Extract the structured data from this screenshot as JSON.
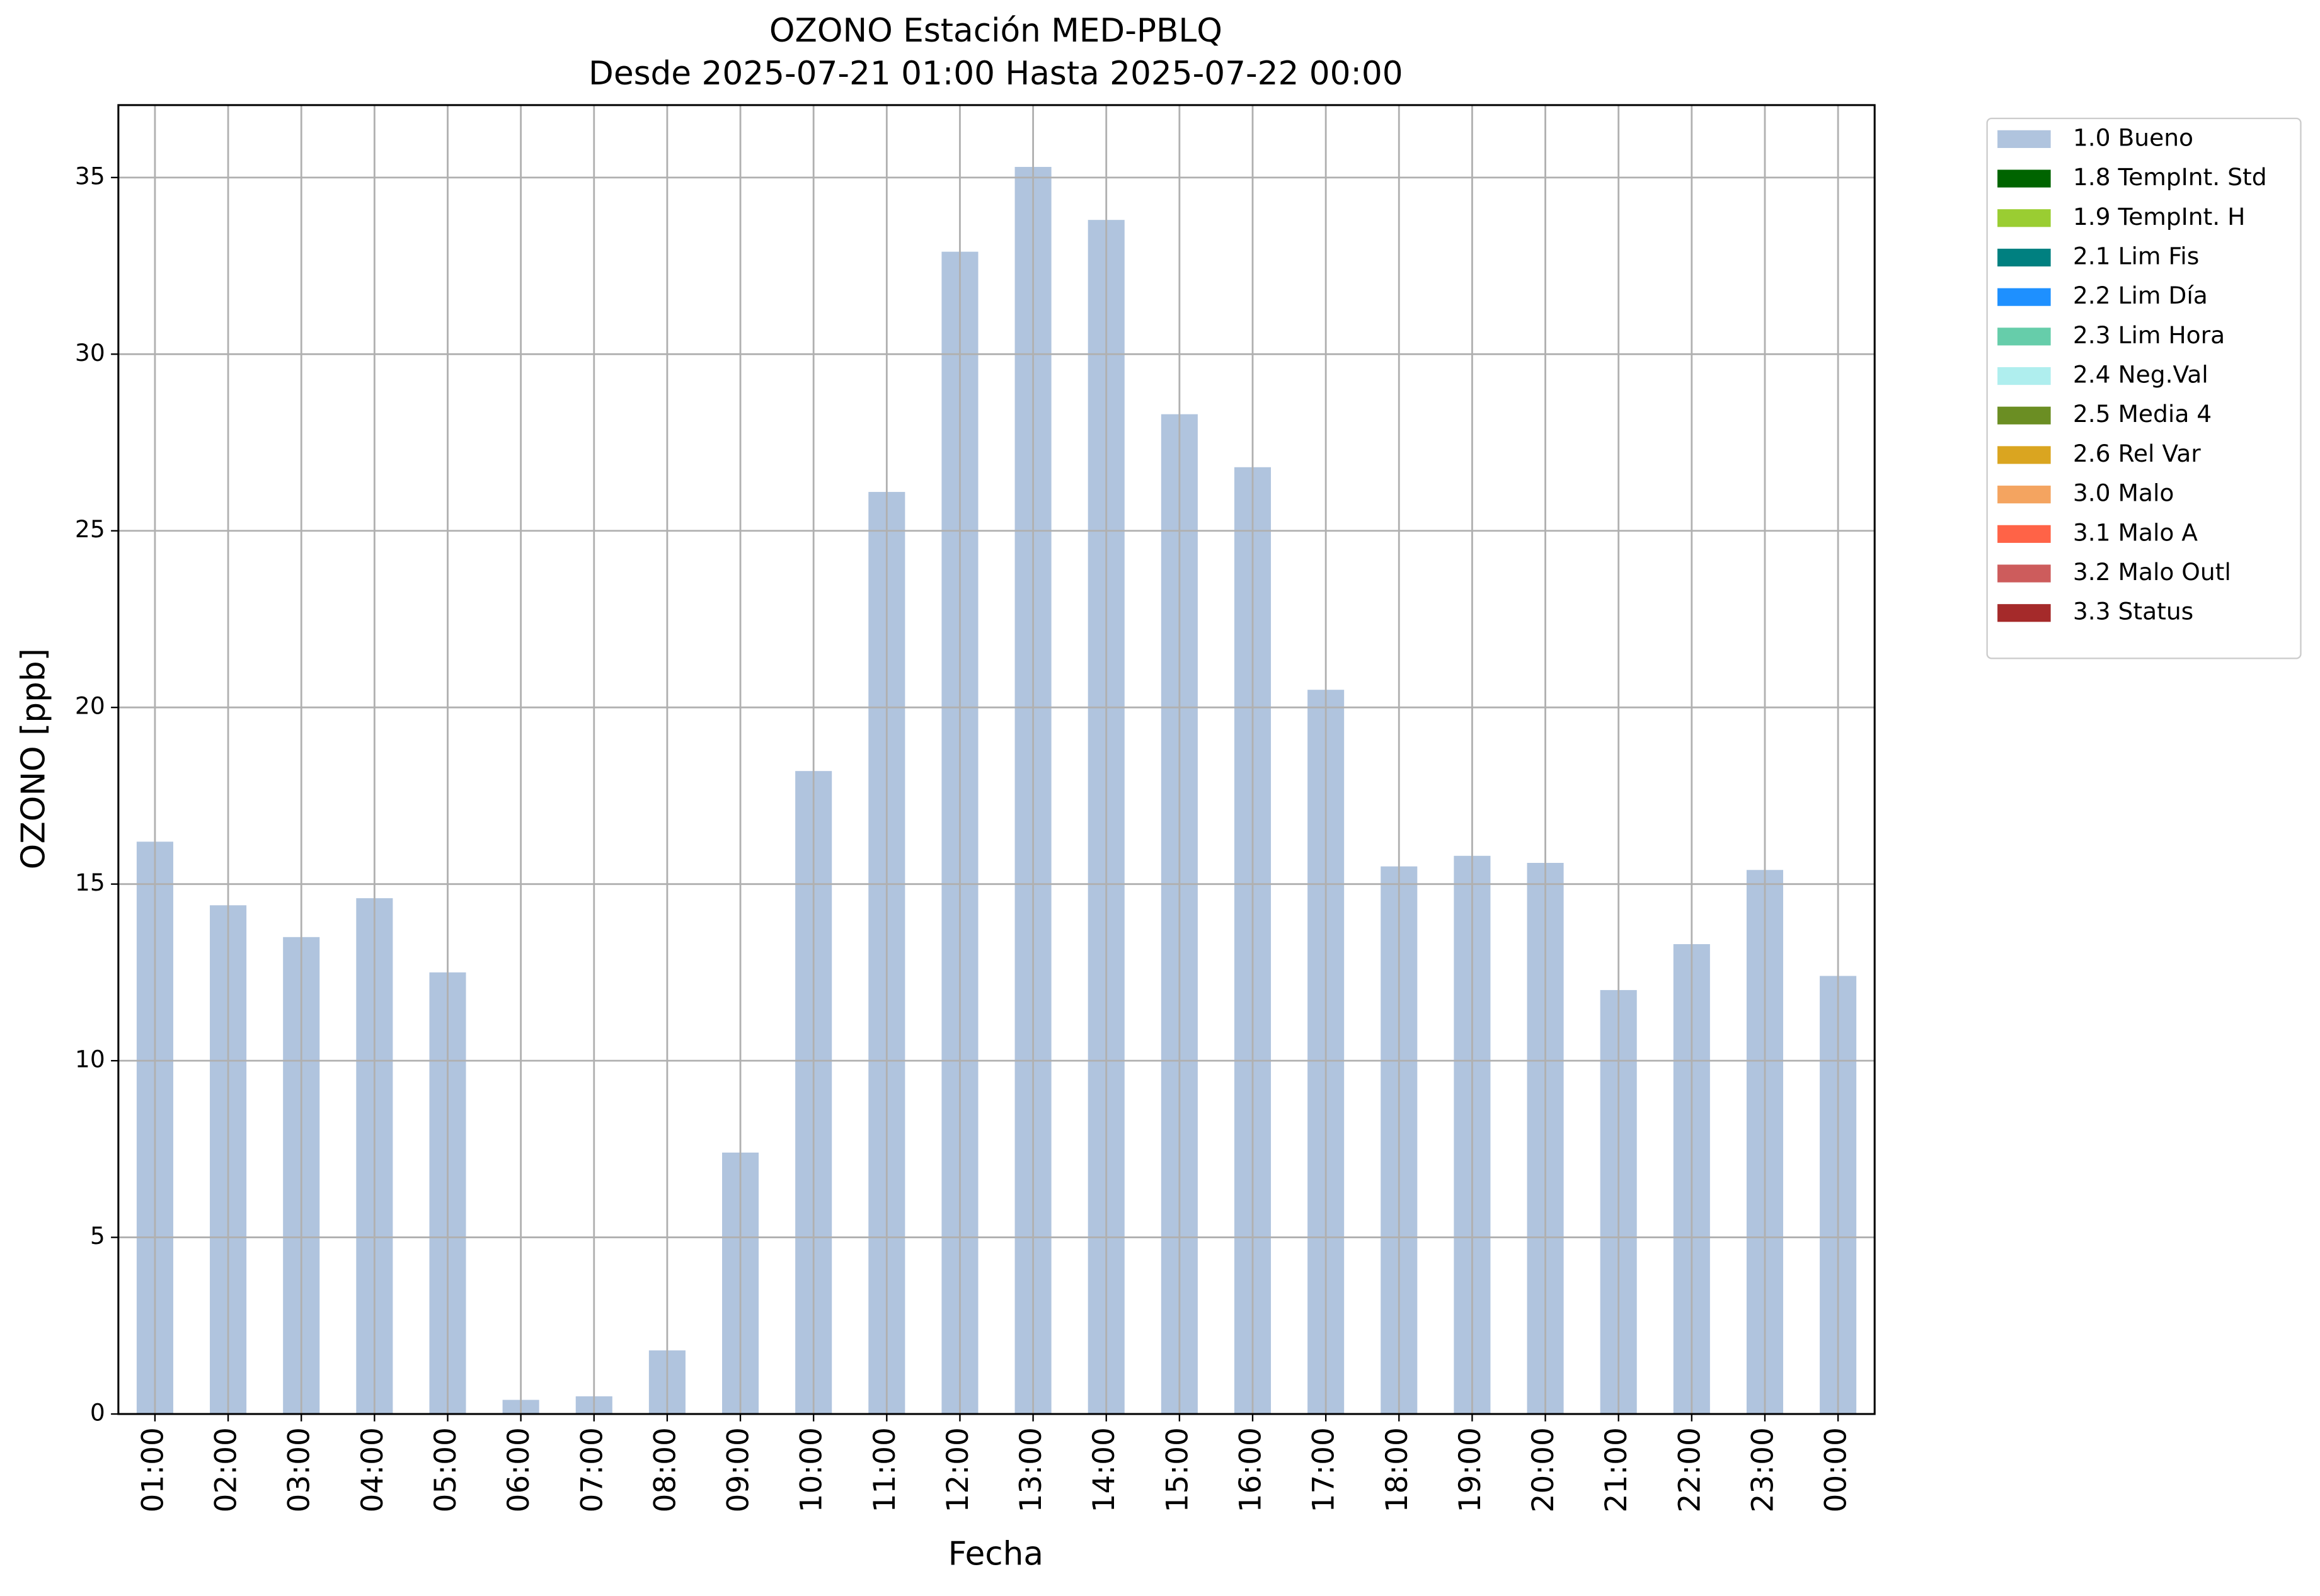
{
  "chart_data": {
    "type": "bar",
    "title": "OZONO Estación MED-PBLQ",
    "subtitle": "Desde 2025-07-21 01:00 Hasta 2025-07-22 00:00",
    "x_label": "Fecha",
    "y_label": "OZONO [ppb]",
    "categories": [
      "01:00",
      "02:00",
      "03:00",
      "04:00",
      "05:00",
      "06:00",
      "07:00",
      "08:00",
      "09:00",
      "10:00",
      "11:00",
      "12:00",
      "13:00",
      "14:00",
      "15:00",
      "16:00",
      "17:00",
      "18:00",
      "19:00",
      "20:00",
      "21:00",
      "22:00",
      "23:00",
      "00:00"
    ],
    "series": [
      {
        "name": "1.0 Bueno",
        "color": "#b0c4de",
        "values": [
          16.2,
          14.4,
          13.5,
          14.6,
          12.5,
          0.4,
          0.5,
          1.8,
          7.4,
          18.2,
          26.1,
          32.9,
          35.3,
          33.8,
          28.3,
          26.8,
          20.5,
          15.5,
          15.8,
          15.6,
          12.0,
          13.3,
          15.4,
          12.4
        ]
      },
      {
        "name": "1.8 TempInt. Std",
        "color": "#006400",
        "values": [
          null,
          null,
          null,
          null,
          null,
          null,
          null,
          null,
          null,
          null,
          null,
          null,
          null,
          null,
          null,
          null,
          null,
          null,
          null,
          null,
          null,
          null,
          null,
          null
        ]
      },
      {
        "name": "1.9 TempInt. H",
        "color": "#9acd32",
        "values": [
          null,
          null,
          null,
          null,
          null,
          null,
          null,
          null,
          null,
          null,
          null,
          null,
          null,
          null,
          null,
          null,
          null,
          null,
          null,
          null,
          null,
          null,
          null,
          null
        ]
      },
      {
        "name": "2.1 Lim Fis",
        "color": "#008080",
        "values": [
          null,
          null,
          null,
          null,
          null,
          null,
          null,
          null,
          null,
          null,
          null,
          null,
          null,
          null,
          null,
          null,
          null,
          null,
          null,
          null,
          null,
          null,
          null,
          null
        ]
      },
      {
        "name": "2.2 Lim Día",
        "color": "#1e90ff",
        "values": [
          null,
          null,
          null,
          null,
          null,
          null,
          null,
          null,
          null,
          null,
          null,
          null,
          null,
          null,
          null,
          null,
          null,
          null,
          null,
          null,
          null,
          null,
          null,
          null
        ]
      },
      {
        "name": "2.3 Lim Hora",
        "color": "#66cdaa",
        "values": [
          null,
          null,
          null,
          null,
          null,
          null,
          null,
          null,
          null,
          null,
          null,
          null,
          null,
          null,
          null,
          null,
          null,
          null,
          null,
          null,
          null,
          null,
          null,
          null
        ]
      },
      {
        "name": "2.4 Neg.Val",
        "color": "#afeeee",
        "values": [
          null,
          null,
          null,
          null,
          null,
          null,
          null,
          null,
          null,
          null,
          null,
          null,
          null,
          null,
          null,
          null,
          null,
          null,
          null,
          null,
          null,
          null,
          null,
          null
        ]
      },
      {
        "name": "2.5 Media 4",
        "color": "#6b8e23",
        "values": [
          null,
          null,
          null,
          null,
          null,
          null,
          null,
          null,
          null,
          null,
          null,
          null,
          null,
          null,
          null,
          null,
          null,
          null,
          null,
          null,
          null,
          null,
          null,
          null
        ]
      },
      {
        "name": "2.6 Rel Var",
        "color": "#daa520",
        "values": [
          null,
          null,
          null,
          null,
          null,
          null,
          null,
          null,
          null,
          null,
          null,
          null,
          null,
          null,
          null,
          null,
          null,
          null,
          null,
          null,
          null,
          null,
          null,
          null
        ]
      },
      {
        "name": "3.0 Malo",
        "color": "#f4a460",
        "values": [
          null,
          null,
          null,
          null,
          null,
          null,
          null,
          null,
          null,
          null,
          null,
          null,
          null,
          null,
          null,
          null,
          null,
          null,
          null,
          null,
          null,
          null,
          null,
          null
        ]
      },
      {
        "name": "3.1 Malo A",
        "color": "#ff6347",
        "values": [
          null,
          null,
          null,
          null,
          null,
          null,
          null,
          null,
          null,
          null,
          null,
          null,
          null,
          null,
          null,
          null,
          null,
          null,
          null,
          null,
          null,
          null,
          null,
          null
        ]
      },
      {
        "name": "3.2 Malo Outl",
        "color": "#cd5c5c",
        "values": [
          null,
          null,
          null,
          null,
          null,
          null,
          null,
          null,
          null,
          null,
          null,
          null,
          null,
          null,
          null,
          null,
          null,
          null,
          null,
          null,
          null,
          null,
          null,
          null
        ]
      },
      {
        "name": "3.3 Status",
        "color": "#a52a2a",
        "values": [
          null,
          null,
          null,
          null,
          null,
          null,
          null,
          null,
          null,
          null,
          null,
          null,
          null,
          null,
          null,
          null,
          null,
          null,
          null,
          null,
          null,
          null,
          null,
          null
        ]
      }
    ],
    "stacked": true,
    "ylim": [
      0,
      37.05
    ],
    "yticks": [
      0,
      5,
      10,
      15,
      20,
      25,
      30,
      35
    ],
    "grid": true,
    "legend": "outside-upper-right"
  }
}
